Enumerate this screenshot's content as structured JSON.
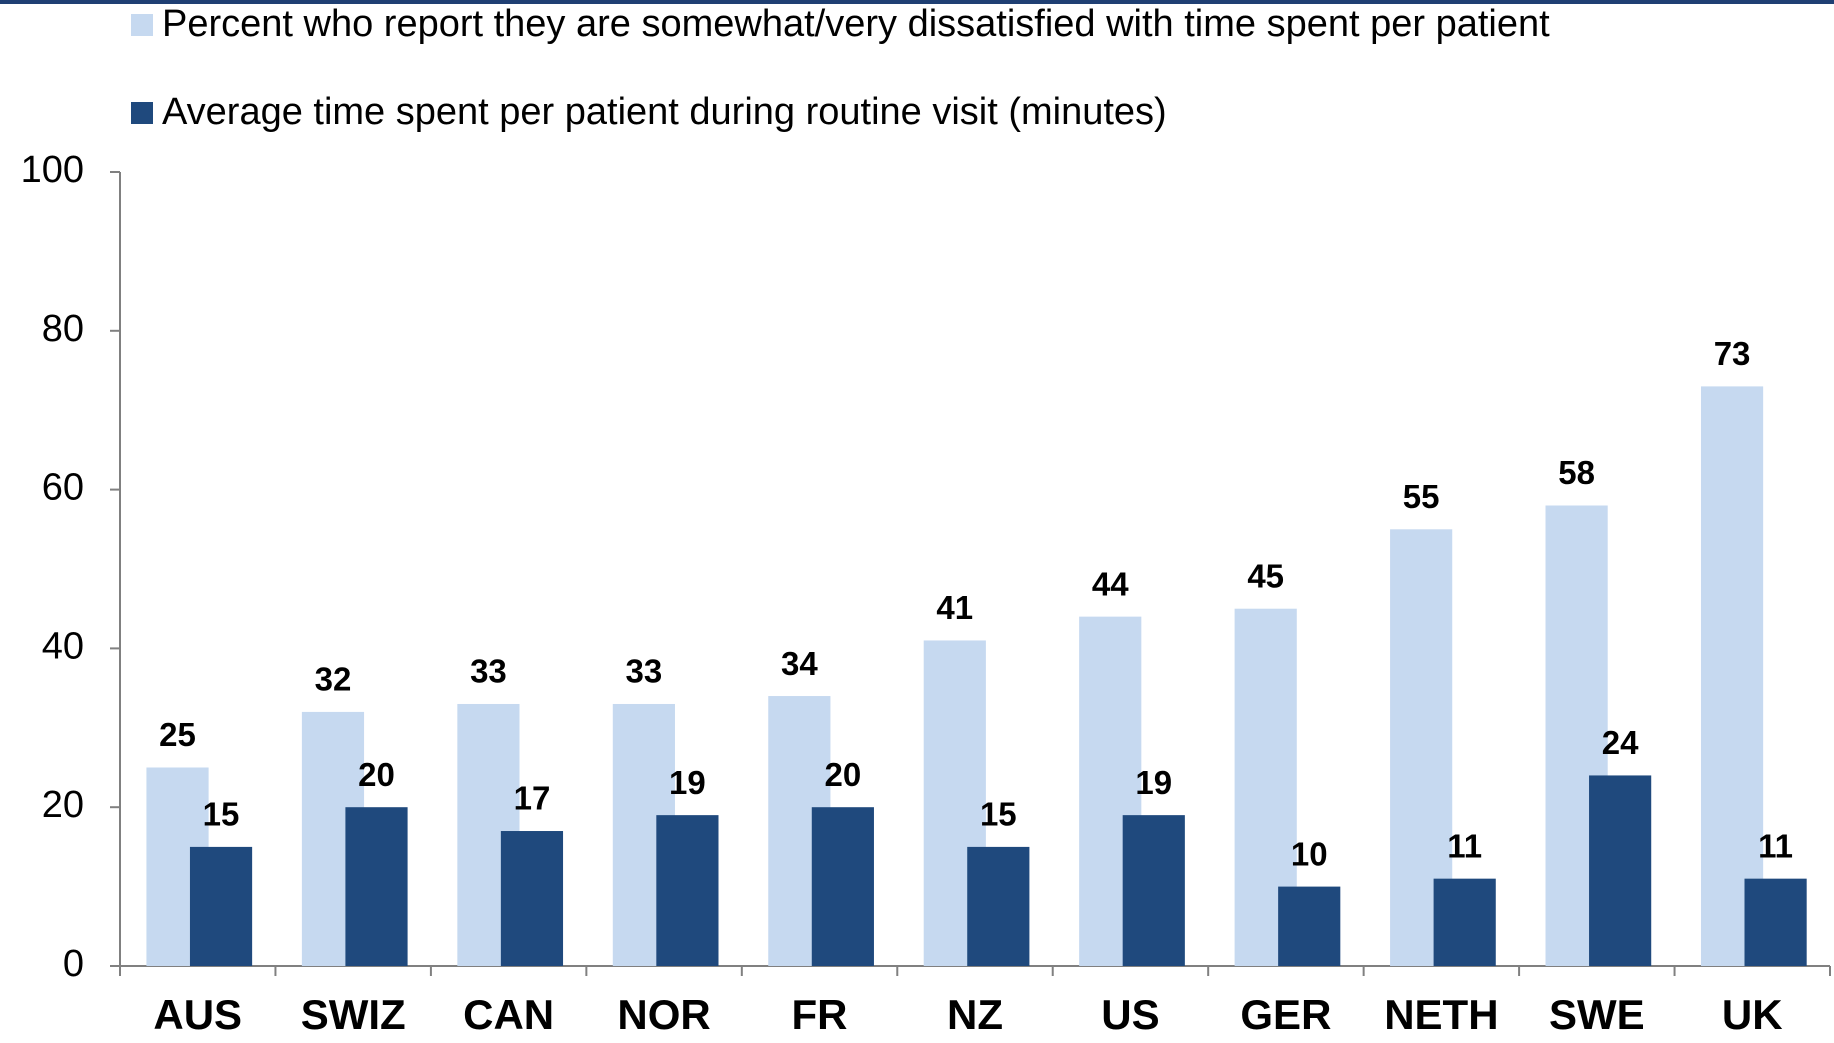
{
  "chart_data": {
    "type": "bar",
    "categories": [
      "AUS",
      "SWIZ",
      "CAN",
      "NOR",
      "FR",
      "NZ",
      "US",
      "GER",
      "NETH",
      "SWE",
      "UK"
    ],
    "series": [
      {
        "name": "Percent who report they are somewhat/very dissatisfied with time spent per patient",
        "color": "#c6d9f0",
        "values": [
          25,
          32,
          33,
          33,
          34,
          41,
          44,
          45,
          55,
          58,
          73
        ]
      },
      {
        "name": "Average time spent per patient during routine visit (minutes)",
        "color": "#1f497d",
        "values": [
          15,
          20,
          17,
          19,
          20,
          15,
          19,
          10,
          11,
          24,
          11
        ]
      }
    ],
    "ylim": [
      0,
      100
    ],
    "yticks": [
      0,
      20,
      40,
      60,
      80,
      100
    ],
    "grid": false
  }
}
